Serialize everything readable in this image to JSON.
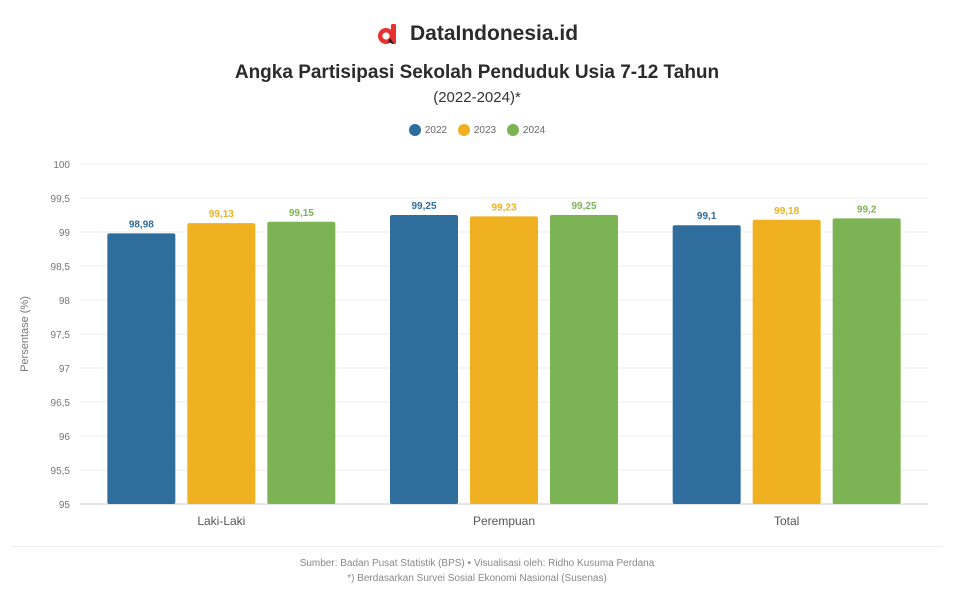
{
  "brand": {
    "name": "DataIndonesia.id",
    "accent_color": "#e8312f",
    "logo_icon": "d-logo-icon"
  },
  "source": {
    "line1": "Sumber: Badan Pusat Statistik (BPS) • Visualisasi oleh: Ridho Kusuma Perdana",
    "line2": "*) Berdasarkan Survei Sosial Ekonomi Nasional (Susenas)"
  },
  "chart_data": {
    "type": "bar",
    "title": "Angka Partisipasi Sekolah Penduduk Usia 7-12 Tahun",
    "subtitle": "(2022-2024)*",
    "ylabel": "Persentase (%)",
    "xlabel": "",
    "categories": [
      "Laki-Laki",
      "Perempuan",
      "Total"
    ],
    "series": [
      {
        "name": "2022",
        "color": "#2e6d9c",
        "values": [
          98.98,
          99.25,
          99.1
        ]
      },
      {
        "name": "2023",
        "color": "#efb11f",
        "values": [
          99.13,
          99.23,
          99.18
        ]
      },
      {
        "name": "2024",
        "color": "#7cb354",
        "values": [
          99.15,
          99.25,
          99.2
        ]
      }
    ],
    "ylim": [
      95,
      100
    ],
    "yticks": [
      95,
      95.5,
      96,
      96.5,
      97,
      97.5,
      98,
      98.5,
      99,
      99.5,
      100
    ],
    "ytick_labels": [
      "95",
      "95,5",
      "96",
      "96,5",
      "97",
      "97,5",
      "98",
      "98,5",
      "99",
      "99,5",
      "100"
    ],
    "data_labels": [
      [
        "98,98",
        "99,13",
        "99,15"
      ],
      [
        "99,25",
        "99,23",
        "99,25"
      ],
      [
        "99,1",
        "99,18",
        "99,2"
      ]
    ],
    "grid": true,
    "legend_position": "top-center"
  }
}
